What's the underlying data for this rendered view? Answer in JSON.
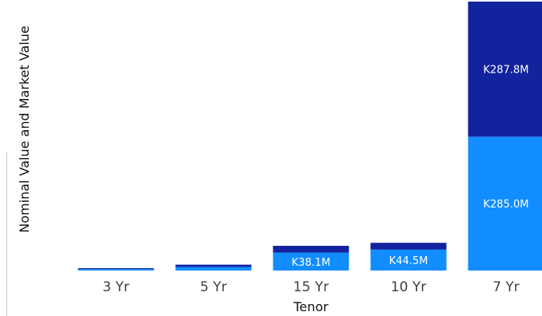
{
  "chart_data": {
    "type": "bar",
    "stacked": true,
    "title": "",
    "xlabel": "Tenor",
    "ylabel": "Nominal Value and Market Value",
    "categories": [
      "3 Yr",
      "5 Yr",
      "15 Yr",
      "10 Yr",
      "7 Yr"
    ],
    "series": [
      {
        "name": "",
        "color": "#118DFF",
        "values": [
          3.0,
          7.5,
          38.1,
          44.5,
          285.0
        ],
        "labels": [
          "",
          "",
          "K38.1M",
          "K44.5M",
          "K285.0M"
        ]
      },
      {
        "name": "",
        "color": "#12239E",
        "values": [
          2.0,
          5.0,
          14.5,
          14.5,
          287.8
        ],
        "labels": [
          "",
          "",
          "",
          "",
          "K287.8M"
        ]
      }
    ],
    "ylim": [
      0,
      572.8
    ],
    "grid": false,
    "legend": "none"
  }
}
